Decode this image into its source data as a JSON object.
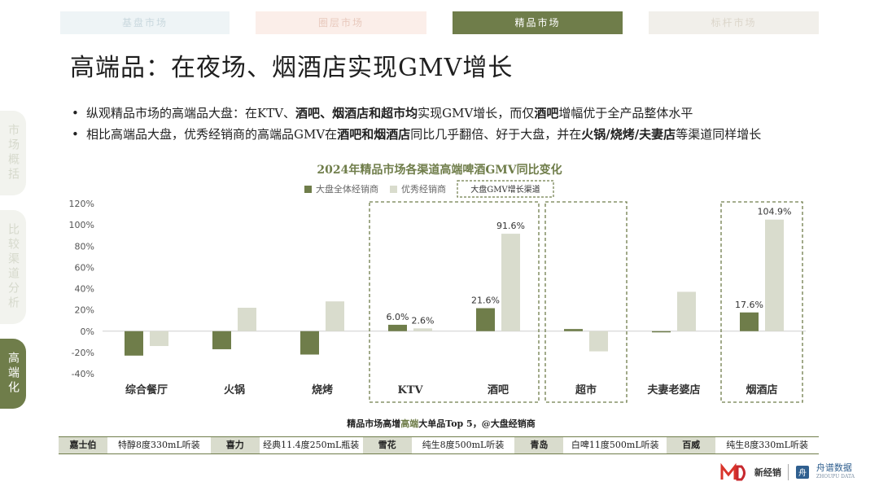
{
  "tabs": [
    {
      "label": "基盘市场"
    },
    {
      "label": "圈层市场"
    },
    {
      "label": "精品市场"
    },
    {
      "label": "标杆市场"
    }
  ],
  "side_nav": [
    {
      "label": "市场概括"
    },
    {
      "label": "比较渠道分析"
    },
    {
      "label": "高端化"
    }
  ],
  "title": "高端品：在夜场、烟酒店实现GMV增长",
  "bullets": [
    {
      "parts": [
        "纵观精品市场的高端品大盘：在KTV、",
        "酒吧",
        "、",
        "烟酒店",
        "和",
        "超市均",
        "实现GMV增长，而仅",
        "酒吧",
        "增幅优于全产品整体水平"
      ],
      "bold": [
        false,
        true,
        true,
        true,
        true,
        true,
        false,
        true,
        false
      ]
    },
    {
      "parts": [
        "相比高端品大盘，优秀经销商的高端品GMV在",
        "酒吧和烟酒店",
        "同比几乎翻倍、好于大盘，并在",
        "火锅/烧烤/夫妻店",
        "等渠道同样增长"
      ],
      "bold": [
        false,
        true,
        false,
        true,
        false
      ]
    }
  ],
  "chart_data": {
    "type": "bar",
    "title": "2024年精品市场各渠道高端啤酒GMV同比变化",
    "categories": [
      "综合餐厅",
      "火锅",
      "烧烤",
      "KTV",
      "酒吧",
      "超市",
      "夫妻老婆店",
      "烟酒店"
    ],
    "series": [
      {
        "name": "大盘全体经销商",
        "color": "#6f7d4a",
        "values": [
          -23,
          -17,
          -22,
          6.0,
          21.6,
          2,
          -1,
          17.6
        ]
      },
      {
        "name": "优秀经销商",
        "color": "#d9dccd",
        "values": [
          -14,
          22,
          28,
          2.6,
          91.6,
          -19,
          37,
          104.9
        ]
      }
    ],
    "data_labels": [
      {
        "category": "KTV",
        "series": 0,
        "text": "6.0%"
      },
      {
        "category": "KTV",
        "series": 1,
        "text": "2.6%"
      },
      {
        "category": "酒吧",
        "series": 0,
        "text": "21.6%"
      },
      {
        "category": "酒吧",
        "series": 1,
        "text": "91.6%"
      },
      {
        "category": "烟酒店",
        "series": 0,
        "text": "17.6%"
      },
      {
        "category": "烟酒店",
        "series": 1,
        "text": "104.9%"
      }
    ],
    "highlight_legend": "大盘GMV增长渠道",
    "highlighted_categories": [
      [
        "KTV",
        "酒吧"
      ],
      [
        "超市"
      ],
      [
        "烟酒店"
      ]
    ],
    "highlight_color": "#6f7d4a",
    "ylim": [
      -40,
      120
    ],
    "yticks": [
      "-40%",
      "-20%",
      "0%",
      "20%",
      "40%",
      "60%",
      "80%",
      "100%",
      "120%"
    ],
    "ytick_values": [
      -40,
      -20,
      0,
      20,
      40,
      60,
      80,
      100,
      120
    ],
    "legend_position": "top",
    "grid": false
  },
  "top5": {
    "title": "精品市场高增高端大单品Top 5，@大盘经销商",
    "title_highlight": "高端",
    "items": [
      {
        "brand": "嘉士伯",
        "product": "特醇8度330mL听装"
      },
      {
        "brand": "喜力",
        "product": "经典11.4度250mL瓶装"
      },
      {
        "brand": "雪花",
        "product": "纯生8度500mL听装"
      },
      {
        "brand": "青岛",
        "product": "白啤11度500mL听装"
      },
      {
        "brand": "百威",
        "product": "纯生8度330mL听装"
      }
    ]
  },
  "logos": {
    "left": "新经销",
    "right": "舟谱数据",
    "right_sub": "ZHOUPU DATA"
  },
  "colors": {
    "accent": "#6f7d4a",
    "light": "#d9dccd",
    "tab_active": "#6f7d4a"
  }
}
